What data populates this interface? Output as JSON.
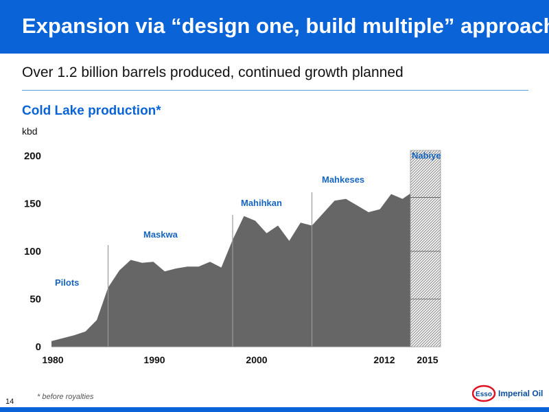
{
  "slide": {
    "title": "Expansion via “design one, build multiple” approach",
    "subtitle": "Over 1.2 billion barrels produced, continued growth planned",
    "footnote": "* before royalties",
    "page_number": "14",
    "logo": {
      "emblem_text": "Esso",
      "company_text": "Imperial Oil"
    },
    "colors": {
      "brand_blue": "#0a64d8",
      "rule_blue": "#4da3e6",
      "area_gray": "#666666"
    }
  },
  "chart_data": {
    "type": "area",
    "title": "Cold Lake production*",
    "ylabel": "kbd",
    "xlabel": "",
    "ylim": [
      0,
      200
    ],
    "yticks": [
      0,
      50,
      100,
      150,
      200
    ],
    "xticks": [
      "1980",
      "1990",
      "2000",
      "2012",
      "2015"
    ],
    "grid": false,
    "x": [
      1980,
      1981,
      1982,
      1983,
      1984,
      1985,
      1986,
      1987,
      1988,
      1989,
      1990,
      1991,
      1992,
      1993,
      1994,
      1995,
      1996,
      1997,
      1998,
      1999,
      2000,
      2001,
      2002,
      2003,
      2004,
      2005,
      2006,
      2007,
      2008,
      2009,
      2010,
      2011,
      2012
    ],
    "values": [
      6,
      9,
      12,
      16,
      28,
      62,
      80,
      91,
      88,
      89,
      79,
      82,
      84,
      84,
      89,
      83,
      112,
      137,
      132,
      119,
      127,
      111,
      130,
      127,
      140,
      153,
      155,
      148,
      141,
      144,
      160,
      155,
      163
    ],
    "phases": [
      {
        "name": "Pilots",
        "start": 1980,
        "end": 1985
      },
      {
        "name": "Maskwa",
        "start": 1985,
        "end": 1996
      },
      {
        "name": "Mahihkan",
        "start": 1996,
        "end": 2003
      },
      {
        "name": "Mahkeses",
        "start": 2003,
        "end": 2012
      }
    ],
    "projection": {
      "label": "Nabiye",
      "year": 2015,
      "ymax": 200,
      "pattern": "hatched"
    }
  }
}
